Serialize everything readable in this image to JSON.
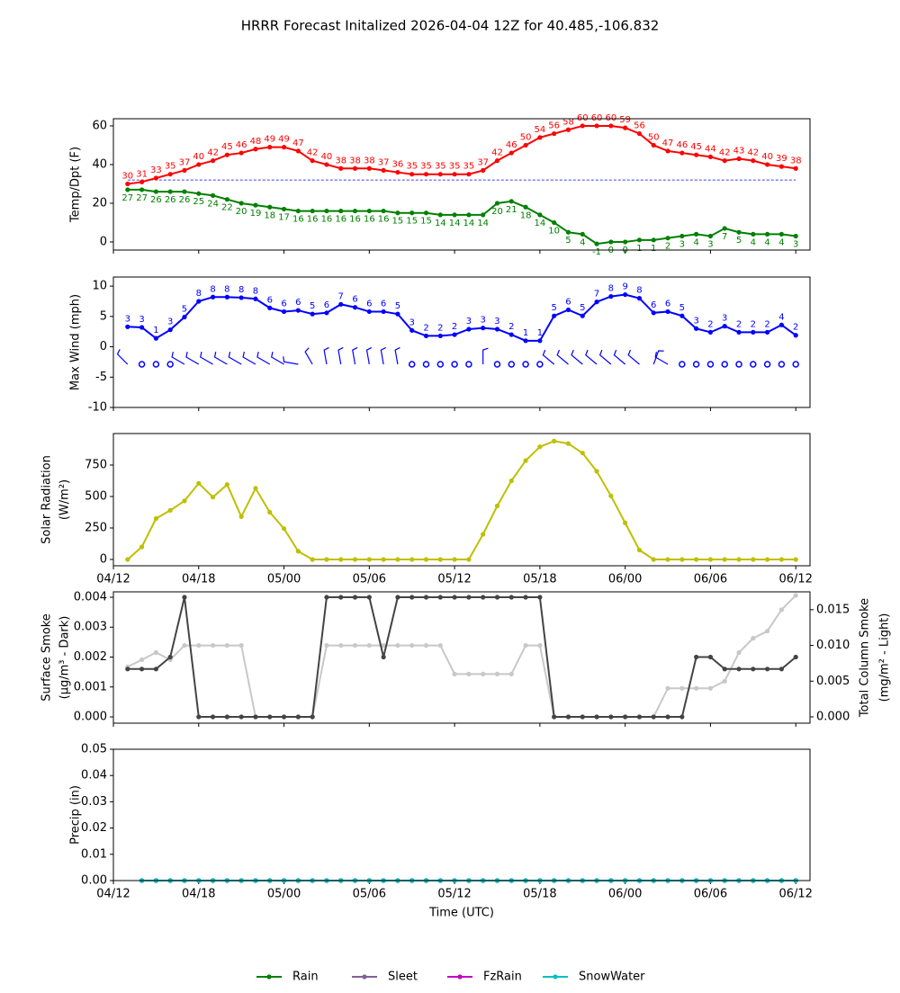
{
  "title": "HRRR Forecast Initalized 2026-04-04 12Z for 40.485,-106.832",
  "chart_data": [
    {
      "type": "line",
      "ylabel": [
        "Temp/Dpt (F)"
      ],
      "xlim": [
        0,
        49
      ],
      "xticks": [
        0,
        6,
        12,
        18,
        24,
        30,
        36,
        42,
        48
      ],
      "ylim": [
        -4.2,
        63.7
      ],
      "yticks": [
        0,
        20,
        40,
        60
      ],
      "hline": {
        "value": 32,
        "color": "#0000ff"
      },
      "x": [
        1,
        2,
        3,
        4,
        5,
        6,
        7,
        8,
        9,
        10,
        11,
        12,
        13,
        14,
        15,
        16,
        17,
        18,
        19,
        20,
        21,
        22,
        23,
        24,
        25,
        26,
        27,
        28,
        29,
        30,
        31,
        32,
        33,
        34,
        35,
        36,
        37,
        38,
        39,
        40,
        41,
        42,
        43,
        44,
        45,
        46,
        47,
        48
      ],
      "series": [
        {
          "name": "Temp",
          "color": "#ff0000",
          "data_labels": "above",
          "values": [
            30,
            31,
            33,
            35,
            37,
            40,
            42,
            45,
            46,
            48,
            49,
            49,
            47,
            42,
            40,
            38,
            38,
            38,
            37,
            36,
            35,
            35,
            35,
            35,
            35,
            37,
            42,
            46,
            50,
            54,
            56,
            58,
            60,
            60,
            60,
            59,
            56,
            50,
            47,
            46,
            45,
            44,
            42,
            43,
            42,
            40,
            39,
            38
          ]
        },
        {
          "name": "Dpt",
          "color": "#008000",
          "data_labels": "below",
          "values": [
            27,
            27,
            26,
            26,
            26,
            25,
            24,
            22,
            20,
            19,
            18,
            17,
            16,
            16,
            16,
            16,
            16,
            16,
            16,
            15,
            15,
            15,
            14,
            14,
            14,
            14,
            20,
            21,
            18,
            14,
            10,
            5,
            4,
            -1,
            0,
            0,
            1,
            1,
            2,
            3,
            4,
            3,
            7,
            5,
            4,
            4,
            4,
            3
          ]
        }
      ]
    },
    {
      "type": "line",
      "ylabel": [
        "Max Wind (mph)"
      ],
      "xlim": [
        0,
        49
      ],
      "xticks": [
        0,
        6,
        12,
        18,
        24,
        30,
        36,
        42,
        48
      ],
      "ylim": [
        -10,
        11.5
      ],
      "yticks": [
        -10,
        -5,
        0,
        5,
        10
      ],
      "x": [
        1,
        2,
        3,
        4,
        5,
        6,
        7,
        8,
        9,
        10,
        11,
        12,
        13,
        14,
        15,
        16,
        17,
        18,
        19,
        20,
        21,
        22,
        23,
        24,
        25,
        26,
        27,
        28,
        29,
        30,
        31,
        32,
        33,
        34,
        35,
        36,
        37,
        38,
        39,
        40,
        41,
        42,
        43,
        44,
        45,
        46,
        47,
        48
      ],
      "barb_directions": [
        315,
        null,
        null,
        null,
        300,
        300,
        300,
        300,
        300,
        300,
        300,
        300,
        280,
        330,
        350,
        350,
        350,
        350,
        350,
        350,
        null,
        null,
        null,
        null,
        null,
        0,
        null,
        null,
        null,
        null,
        310,
        310,
        310,
        310,
        310,
        310,
        310,
        20,
        300,
        null,
        null,
        null,
        null,
        null,
        null,
        null,
        null,
        null
      ],
      "series": [
        {
          "name": "Max Wind",
          "color": "#0000ff",
          "data_labels": "above",
          "values": [
            3.3,
            3.2,
            1.4,
            2.8,
            4.9,
            7.5,
            8.2,
            8.2,
            8.1,
            7.9,
            6.4,
            5.8,
            6.0,
            5.4,
            5.6,
            7.0,
            6.5,
            5.8,
            5.8,
            5.4,
            2.7,
            1.8,
            1.8,
            2.0,
            2.9,
            3.1,
            2.9,
            2.0,
            1.0,
            1.0,
            5.1,
            6.1,
            5.1,
            7.4,
            8.3,
            8.6,
            8.0,
            5.6,
            5.8,
            5.1,
            3.0,
            2.4,
            3.4,
            2.4,
            2.4,
            2.4,
            3.6,
            1.9
          ],
          "value_labels": [
            "3",
            "3",
            "1",
            "3",
            "5",
            "8",
            "8",
            "8",
            "8",
            "8",
            "6",
            "6",
            "6",
            "5",
            "6",
            "7",
            "6",
            "6",
            "6",
            "5",
            "3",
            "2",
            "2",
            "2",
            "3",
            "3",
            "3",
            "2",
            "1",
            "1",
            "5",
            "6",
            "5",
            "7",
            "8",
            "9",
            "8",
            "6",
            "6",
            "5",
            "3",
            "2",
            "3",
            "2",
            "2",
            "2",
            "4",
            "2"
          ]
        }
      ]
    },
    {
      "type": "line",
      "ylabel": [
        "Solar Radiation",
        "(W/m²)"
      ],
      "xlim": [
        0,
        49
      ],
      "xticks": [
        {
          "value": 0,
          "label": "04/12"
        },
        {
          "value": 6,
          "label": "04/18"
        },
        {
          "value": 12,
          "label": "05/00"
        },
        {
          "value": 18,
          "label": "05/06"
        },
        {
          "value": 24,
          "label": "05/12"
        },
        {
          "value": 30,
          "label": "05/18"
        },
        {
          "value": 36,
          "label": "06/00"
        },
        {
          "value": 42,
          "label": "06/06"
        },
        {
          "value": 48,
          "label": "06/12"
        }
      ],
      "ylim": [
        -50,
        1000
      ],
      "yticks": [
        0,
        250,
        500,
        750
      ],
      "x": [
        1,
        2,
        3,
        4,
        5,
        6,
        7,
        8,
        9,
        10,
        11,
        12,
        13,
        14,
        15,
        16,
        17,
        18,
        19,
        20,
        21,
        22,
        23,
        24,
        25,
        26,
        27,
        28,
        29,
        30,
        31,
        32,
        33,
        34,
        35,
        36,
        37,
        38,
        39,
        40,
        41,
        42,
        43,
        44,
        45,
        46,
        47,
        48
      ],
      "series": [
        {
          "name": "Solar Radiation",
          "color": "#bfbf00",
          "values": [
            0,
            100,
            325,
            390,
            465,
            605,
            495,
            595,
            340,
            565,
            375,
            245,
            65,
            0,
            0,
            0,
            0,
            0,
            0,
            0,
            0,
            0,
            0,
            0,
            0,
            200,
            425,
            625,
            785,
            895,
            940,
            920,
            845,
            700,
            505,
            290,
            75,
            0,
            0,
            0,
            0,
            0,
            0,
            0,
            0,
            0,
            0,
            0
          ]
        }
      ]
    },
    {
      "type": "line",
      "ylabel": [
        "Surface Smoke",
        "(µg/m³ - Dark)"
      ],
      "y2label": [
        "Total Column Smoke",
        "(mg/m² - Light)"
      ],
      "xlim": [
        0,
        49
      ],
      "xticks": [
        0,
        6,
        12,
        18,
        24,
        30,
        36,
        42,
        48
      ],
      "ylim": [
        -0.00021,
        0.00418
      ],
      "yticks": [
        {
          "value": 0,
          "label": "0.000"
        },
        {
          "value": 0.001,
          "label": "0.001"
        },
        {
          "value": 0.002,
          "label": "0.002"
        },
        {
          "value": 0.003,
          "label": "0.003"
        },
        {
          "value": 0.004,
          "label": "0.004"
        }
      ],
      "y2lim": [
        -0.00088,
        0.0175
      ],
      "y2ticks": [
        {
          "value": 0,
          "label": "0.000"
        },
        {
          "value": 0.005,
          "label": "0.005"
        },
        {
          "value": 0.01,
          "label": "0.010"
        },
        {
          "value": 0.015,
          "label": "0.015"
        }
      ],
      "x": [
        1,
        2,
        3,
        4,
        5,
        6,
        7,
        8,
        9,
        10,
        11,
        12,
        13,
        14,
        15,
        16,
        17,
        18,
        19,
        20,
        21,
        22,
        23,
        24,
        25,
        26,
        27,
        28,
        29,
        30,
        31,
        32,
        33,
        34,
        35,
        36,
        37,
        38,
        39,
        40,
        41,
        42,
        43,
        44,
        45,
        46,
        47,
        48
      ],
      "series": [
        {
          "name": "Total Column Smoke",
          "color": "#c8c8c8",
          "axis": "y2",
          "values": [
            0.007,
            0.008,
            0.009,
            0.008,
            0.01,
            0.01,
            0.01,
            0.01,
            0.01,
            0,
            0,
            0,
            0,
            0,
            0.01,
            0.01,
            0.01,
            0.01,
            0.01,
            0.01,
            0.01,
            0.01,
            0.01,
            0.006,
            0.006,
            0.006,
            0.006,
            0.006,
            0.01,
            0.01,
            0,
            0,
            0,
            0,
            0,
            0,
            0,
            0,
            0.004,
            0.004,
            0.004,
            0.004,
            0.005,
            0.009,
            0.011,
            0.012,
            0.015,
            0.017
          ]
        },
        {
          "name": "Surface Smoke",
          "color": "#444444",
          "values": [
            0.0016,
            0.0016,
            0.0016,
            0.002,
            0.004,
            0,
            0,
            0,
            0,
            0,
            0,
            0,
            0,
            0,
            0.004,
            0.004,
            0.004,
            0.004,
            0.002,
            0.004,
            0.004,
            0.004,
            0.004,
            0.004,
            0.004,
            0.004,
            0.004,
            0.004,
            0.004,
            0.004,
            0,
            0,
            0,
            0,
            0,
            0,
            0,
            0,
            0,
            0,
            0.002,
            0.002,
            0.0016,
            0.0016,
            0.0016,
            0.0016,
            0.0016,
            0.002
          ]
        }
      ]
    },
    {
      "type": "line",
      "ylabel": [
        "Precip (in)"
      ],
      "xlabel": "Time (UTC)",
      "xlim": [
        0,
        49
      ],
      "xticks": [
        {
          "value": 0,
          "label": "04/12"
        },
        {
          "value": 6,
          "label": "04/18"
        },
        {
          "value": 12,
          "label": "05/00"
        },
        {
          "value": 18,
          "label": "05/06"
        },
        {
          "value": 24,
          "label": "05/12"
        },
        {
          "value": 30,
          "label": "05/18"
        },
        {
          "value": 36,
          "label": "06/00"
        },
        {
          "value": 42,
          "label": "06/06"
        },
        {
          "value": 48,
          "label": "06/12"
        }
      ],
      "ylim": [
        0,
        0.05
      ],
      "yticks": [
        {
          "value": 0,
          "label": "0.00"
        },
        {
          "value": 0.01,
          "label": "0.01"
        },
        {
          "value": 0.02,
          "label": "0.02"
        },
        {
          "value": 0.03,
          "label": "0.03"
        },
        {
          "value": 0.04,
          "label": "0.04"
        },
        {
          "value": 0.05,
          "label": "0.05"
        }
      ],
      "legend": "bottom",
      "x": [
        1,
        2,
        3,
        4,
        5,
        6,
        7,
        8,
        9,
        10,
        11,
        12,
        13,
        14,
        15,
        16,
        17,
        18,
        19,
        20,
        21,
        22,
        23,
        24,
        25,
        26,
        27,
        28,
        29,
        30,
        31,
        32,
        33,
        34,
        35,
        36,
        37,
        38,
        39,
        40,
        41,
        42,
        43,
        44,
        45,
        46,
        47,
        48
      ],
      "series": [
        {
          "name": "Rain",
          "color": "#008000",
          "values": [
            null,
            0,
            0,
            0,
            0,
            0,
            0,
            0,
            0,
            0,
            0,
            0,
            0,
            0,
            0,
            0,
            0,
            0,
            0,
            0,
            0,
            0,
            0,
            0,
            0,
            0,
            0,
            0,
            0,
            0,
            0,
            0,
            0,
            0,
            0,
            0,
            0,
            0,
            0,
            0,
            0,
            0,
            0,
            0,
            0,
            0,
            0,
            0
          ]
        },
        {
          "name": "Sleet",
          "color": "#806098",
          "values": [
            null,
            0,
            0,
            0,
            0,
            0,
            0,
            0,
            0,
            0,
            0,
            0,
            0,
            0,
            0,
            0,
            0,
            0,
            0,
            0,
            0,
            0,
            0,
            0,
            0,
            0,
            0,
            0,
            0,
            0,
            0,
            0,
            0,
            0,
            0,
            0,
            0,
            0,
            0,
            0,
            0,
            0,
            0,
            0,
            0,
            0,
            0,
            0
          ]
        },
        {
          "name": "FzRain",
          "color": "#c000c0",
          "values": [
            null,
            0,
            0,
            0,
            0,
            0,
            0,
            0,
            0,
            0,
            0,
            0,
            0,
            0,
            0,
            0,
            0,
            0,
            0,
            0,
            0,
            0,
            0,
            0,
            0,
            0,
            0,
            0,
            0,
            0,
            0,
            0,
            0,
            0,
            0,
            0,
            0,
            0,
            0,
            0,
            0,
            0,
            0,
            0,
            0,
            0,
            0,
            0
          ]
        },
        {
          "name": "SnowWater",
          "color": "#00bfbf",
          "values": [
            null,
            0,
            0,
            0,
            0,
            0,
            0,
            0,
            0,
            0,
            0,
            0,
            0,
            0,
            0,
            0,
            0,
            0,
            0,
            0,
            0,
            0,
            0,
            0,
            0,
            0,
            0,
            0,
            0,
            0,
            0,
            0,
            0,
            0,
            0,
            0,
            0,
            0,
            0,
            0,
            0,
            0,
            0,
            0,
            0,
            0,
            0,
            0
          ]
        }
      ]
    }
  ]
}
